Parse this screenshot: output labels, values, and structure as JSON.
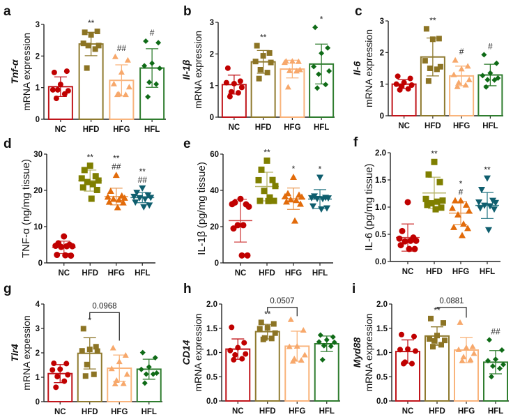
{
  "figure": {
    "colors": {
      "bar_row": [
        "#c0151b",
        "#8f7a2f",
        "#f9b47c",
        "#2f7d2f"
      ],
      "bar_point": [
        "#c00000",
        "#8c7424",
        "#f7a86b",
        "#0f6b17"
      ],
      "scatter_row": [
        "#c00000",
        "#7f7f00",
        "#e26b0a",
        "#0f5e6e"
      ],
      "scatter_err": [
        "#d04040",
        "#b7b56a",
        "#e99a55",
        "#337f8c"
      ]
    }
  },
  "chart_data": [
    {
      "id": "a",
      "letter": "a",
      "type": "bar",
      "layout": "bar",
      "categories": [
        "NC",
        "HFD",
        "HFG",
        "HFL"
      ],
      "ylabel_italic": "Tnf-α",
      "ylabel": "mRNA expression",
      "ylim": [
        0,
        3
      ],
      "yticks": [
        "0",
        "1",
        "2",
        "3"
      ],
      "ytick_values": [
        0,
        1,
        2,
        3
      ],
      "means": [
        1.03,
        2.38,
        1.23,
        1.62
      ],
      "sd": [
        0.31,
        0.37,
        0.49,
        0.61
      ],
      "points": [
        [
          1.48,
          1.52,
          1.1,
          0.93,
          0.9,
          0.93,
          0.8,
          0.66
        ],
        [
          2.75,
          2.78,
          2.67,
          2.4,
          2.33,
          2.33,
          2.22,
          1.62
        ],
        [
          1.98,
          1.87,
          1.49,
          1.12,
          1.02,
          0.8,
          0.78,
          0.78
        ],
        [
          2.47,
          2.42,
          1.77,
          1.69,
          1.61,
          1.17,
          1.11,
          0.71
        ]
      ],
      "markers": [
        "circle",
        "square",
        "triangle",
        "diamond"
      ],
      "significance": [
        "",
        "**",
        "##",
        "#"
      ],
      "bracket": null
    },
    {
      "id": "b",
      "letter": "b",
      "type": "bar",
      "layout": "bar",
      "categories": [
        "NC",
        "HFD",
        "HFG",
        "HFL"
      ],
      "ylabel_italic": "Il-1β",
      "ylabel": "mRNA expression",
      "ylim": [
        0,
        3
      ],
      "yticks": [
        "0",
        "1",
        "2",
        "3"
      ],
      "ytick_values": [
        0,
        1,
        2,
        3
      ],
      "means": [
        1.03,
        1.75,
        1.52,
        1.68
      ],
      "sd": [
        0.3,
        0.36,
        0.28,
        0.63
      ],
      "points": [
        [
          1.55,
          1.14,
          1.06,
          1.09,
          0.94,
          0.8,
          0.77,
          0.65
        ],
        [
          2.26,
          2.03,
          1.94,
          1.76,
          1.73,
          1.5,
          1.41,
          1.22
        ],
        [
          1.77,
          1.76,
          1.77,
          1.73,
          1.5,
          1.47,
          1.46,
          0.95
        ],
        [
          2.84,
          2.19,
          2.02,
          1.6,
          1.46,
          1.36,
          1.03,
          0.92
        ]
      ],
      "markers": [
        "circle",
        "square",
        "triangle",
        "diamond"
      ],
      "significance": [
        "",
        "**",
        "",
        "*"
      ],
      "bracket": null
    },
    {
      "id": "c",
      "letter": "c",
      "type": "bar",
      "layout": "bar",
      "categories": [
        "NC",
        "HFD",
        "HFG",
        "HFL"
      ],
      "ylabel_italic": "Il-6",
      "ylabel": "mRNA expression",
      "ylim": [
        0,
        3
      ],
      "yticks": [
        "0",
        "1",
        "2",
        "3"
      ],
      "ytick_values": [
        0,
        1,
        2,
        3
      ],
      "means": [
        1.0,
        1.86,
        1.26,
        1.29
      ],
      "sd": [
        0.14,
        0.6,
        0.31,
        0.34
      ],
      "points": [
        [
          1.25,
          1.18,
          1.05,
          1.0,
          0.97,
          0.93,
          0.85,
          0.82
        ],
        [
          2.75,
          2.44,
          2.42,
          1.74,
          1.55,
          1.5,
          1.47,
          1.1
        ],
        [
          1.76,
          1.57,
          1.48,
          1.3,
          1.14,
          1.05,
          0.97,
          0.92
        ],
        [
          1.93,
          1.66,
          1.35,
          1.27,
          1.19,
          1.14,
          1.13,
          0.91
        ]
      ],
      "markers": [
        "circle",
        "square",
        "triangle",
        "diamond"
      ],
      "significance": [
        "",
        "**",
        "#",
        "#"
      ],
      "bracket": null
    },
    {
      "id": "d",
      "letter": "d",
      "type": "scatter",
      "layout": "scatter",
      "categories": [
        "NC",
        "HFD",
        "HFG",
        "HFL"
      ],
      "ylabel": "TNF-α (ng/mg tissue)",
      "ylim": [
        0,
        30
      ],
      "yticks": [
        "0",
        "10",
        "20",
        "30"
      ],
      "ytick_values": [
        0,
        10,
        20,
        30
      ],
      "means": [
        4.3,
        22.7,
        18.3,
        18.0
      ],
      "sd": [
        1.7,
        2.9,
        2.3,
        1.4
      ],
      "points": [
        [
          7.3,
          5.4,
          5.0,
          4.7,
          4.6,
          4.4,
          4.6,
          2.2,
          2.0,
          2.1
        ],
        [
          26.8,
          25.6,
          23.9,
          23.3,
          22.7,
          22.3,
          21.7,
          20.8,
          20.1,
          17.7
        ],
        [
          24.2,
          19.8,
          18.5,
          18.2,
          17.9,
          17.6,
          17.4,
          16.8,
          16.6,
          15.3
        ],
        [
          20.6,
          19.4,
          18.7,
          18.3,
          18.0,
          17.9,
          17.6,
          16.7,
          15.9,
          15.4
        ]
      ],
      "markers": [
        "circle",
        "square",
        "triangle",
        "triangle-down"
      ],
      "significance": [
        "",
        "**",
        "**\n##",
        "**\n##"
      ],
      "bracket": null
    },
    {
      "id": "e",
      "letter": "e",
      "type": "scatter",
      "layout": "scatter",
      "categories": [
        "NC",
        "HFD",
        "HFG",
        "HFL"
      ],
      "ylabel": "IL-1β (pg/mg tissue)",
      "ylim": [
        0,
        60
      ],
      "yticks": [
        "0",
        "20",
        "40",
        "60"
      ],
      "ytick_values": [
        0,
        20,
        40,
        60
      ],
      "means": [
        23.3,
        42.1,
        35.4,
        35.2
      ],
      "sd": [
        11.8,
        7.9,
        5.9,
        5.2
      ],
      "points": [
        [
          35.3,
          33.3,
          32.3,
          32.4,
          31.0,
          20.8,
          20.8,
          19.0,
          4.1,
          4.1
        ],
        [
          56.4,
          51.4,
          45.7,
          45.6,
          42.4,
          39.7,
          36.1,
          34.2,
          34.2,
          34.1
        ],
        [
          47.3,
          38.3,
          37.5,
          36.7,
          36.4,
          34.9,
          34.5,
          33.7,
          32.5,
          23.2
        ],
        [
          47.1,
          36.8,
          36.0,
          35.8,
          35.7,
          35.4,
          35.3,
          31.3,
          30.2,
          29.6
        ]
      ],
      "markers": [
        "circle",
        "square",
        "triangle",
        "triangle-down"
      ],
      "significance": [
        "",
        "**",
        "*",
        "*"
      ],
      "bracket": null
    },
    {
      "id": "f",
      "letter": "f",
      "type": "scatter",
      "layout": "scatter",
      "categories": [
        "NC",
        "HFD",
        "HFG",
        "HFL"
      ],
      "ylabel": "IL-6 (pg/mg tissue)",
      "ylim": [
        0,
        2
      ],
      "yticks": [
        "0.0",
        "0.5",
        "1.0",
        "1.5",
        "2.0"
      ],
      "ytick_values": [
        0,
        0.5,
        1,
        1.5,
        2
      ],
      "means": [
        0.44,
        1.26,
        0.89,
        1.03
      ],
      "sd": [
        0.25,
        0.29,
        0.21,
        0.24
      ],
      "points": [
        [
          1.09,
          0.56,
          0.44,
          0.42,
          0.38,
          0.37,
          0.38,
          0.3,
          0.23,
          0.23
        ],
        [
          1.83,
          1.6,
          1.46,
          1.15,
          1.12,
          1.07,
          1.1,
          1.04,
          0.99,
          0.96
        ],
        [
          1.12,
          1.12,
          1.04,
          0.98,
          0.93,
          0.86,
          0.69,
          0.63,
          0.61,
          0.48
        ],
        [
          1.53,
          1.32,
          1.12,
          1.09,
          1.08,
          1.03,
          1.02,
          0.98,
          0.96,
          0.58
        ]
      ],
      "markers": [
        "circle",
        "square",
        "triangle",
        "triangle-down"
      ],
      "significance": [
        "",
        "**",
        "*\n#",
        "**"
      ],
      "bracket": null
    },
    {
      "id": "g",
      "letter": "g",
      "type": "bar",
      "layout": "bar",
      "categories": [
        "NC",
        "HFD",
        "HFG",
        "HFL"
      ],
      "ylabel_italic": "Tlr4",
      "ylabel": "mRNA expession",
      "ylim": [
        0,
        4
      ],
      "yticks": [
        "0",
        "1",
        "2",
        "3",
        "4"
      ],
      "ytick_values": [
        0,
        1,
        2,
        3,
        4
      ],
      "means": [
        1.15,
        1.98,
        1.37,
        1.33
      ],
      "sd": [
        0.37,
        0.64,
        0.54,
        0.41
      ],
      "points": [
        [
          1.57,
          1.56,
          1.33,
          1.3,
          1.1,
          1.03,
          0.84,
          0.59
        ],
        [
          2.99,
          2.25,
          2.14,
          2.08,
          2.07,
          1.52,
          1.12,
          1.05
        ],
        [
          2.2,
          1.9,
          1.64,
          1.35,
          1.12,
          0.87,
          0.74,
          0.73
        ],
        [
          2.01,
          1.8,
          1.42,
          1.32,
          1.17,
          1.13,
          1.13,
          0.76
        ]
      ],
      "markers": [
        "circle",
        "square",
        "triangle",
        "diamond"
      ],
      "significance": [
        "",
        "*",
        "",
        ""
      ],
      "bracket": {
        "from": 1,
        "to": 2,
        "label": "0.0968",
        "level": 3.65,
        "right_drop": 2.5
      }
    },
    {
      "id": "h",
      "letter": "h",
      "type": "bar",
      "layout": "bar",
      "categories": [
        "NC",
        "HFD",
        "HFG",
        "HFL"
      ],
      "ylabel_italic": "CD14",
      "ylabel": "mRNA expression",
      "ylim": [
        0,
        2
      ],
      "yticks": [
        "0.0",
        "0.5",
        "1.0",
        "1.5",
        "2.0"
      ],
      "ytick_values": [
        0,
        0.5,
        1,
        1.5,
        2
      ],
      "means": [
        1.07,
        1.43,
        1.13,
        1.18
      ],
      "sd": [
        0.21,
        0.15,
        0.31,
        0.16
      ],
      "points": [
        [
          1.52,
          1.2,
          1.1,
          1.04,
          0.97,
          0.95,
          0.87,
          0.85
        ],
        [
          1.62,
          1.59,
          1.51,
          1.49,
          1.4,
          1.3,
          1.29,
          1.27
        ],
        [
          1.68,
          1.46,
          1.13,
          1.12,
          0.95,
          0.87,
          0.84,
          0.82
        ],
        [
          1.36,
          1.32,
          1.26,
          1.22,
          1.21,
          1.14,
          1.13,
          0.85
        ]
      ],
      "markers": [
        "circle",
        "square",
        "triangle",
        "diamond"
      ],
      "significance": [
        "",
        "**",
        "",
        ""
      ],
      "bracket": {
        "from": 1,
        "to": 2,
        "label": "0.0507",
        "level": 1.93,
        "right_drop": 1.75
      }
    },
    {
      "id": "i",
      "letter": "i",
      "type": "bar",
      "layout": "bar",
      "categories": [
        "NC",
        "HFD",
        "HFG",
        "HFL"
      ],
      "ylabel_italic": "Myd88",
      "ylabel": "mRNA expression",
      "ylim": [
        0,
        2
      ],
      "yticks": [
        "0.0",
        "0.5",
        "1.0",
        "1.5",
        "2.0"
      ],
      "ytick_values": [
        0,
        0.5,
        1,
        1.5,
        2
      ],
      "means": [
        1.02,
        1.34,
        1.05,
        0.8
      ],
      "sd": [
        0.24,
        0.19,
        0.26,
        0.24
      ],
      "points": [
        [
          1.37,
          1.33,
          1.07,
          1.06,
          1.03,
          0.8,
          0.77,
          0.77
        ],
        [
          1.7,
          1.61,
          1.35,
          1.28,
          1.25,
          1.24,
          1.16,
          1.12
        ],
        [
          1.62,
          1.12,
          1.1,
          1.06,
          0.98,
          0.91,
          0.85,
          0.83
        ],
        [
          1.26,
          1.05,
          0.86,
          0.83,
          0.75,
          0.72,
          0.67,
          0.5
        ]
      ],
      "markers": [
        "circle",
        "square",
        "triangle",
        "diamond"
      ],
      "significance": [
        "",
        "**",
        "",
        "##"
      ],
      "bracket": {
        "from": 1,
        "to": 2,
        "label": "0.0881",
        "level": 1.93,
        "right_drop": 1.72
      }
    }
  ]
}
